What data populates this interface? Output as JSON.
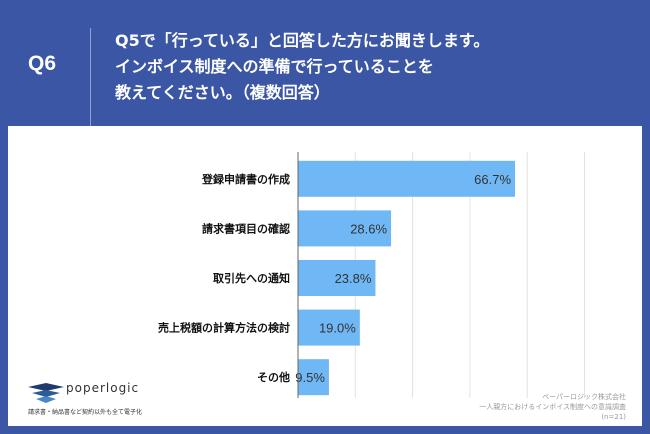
{
  "header": {
    "q_label": "Q6",
    "title_lines": [
      "Q5で「行っている」と回答した方にお聞きします。",
      "インボイス制度への準備で行っていることを",
      "教えてください。（複数回答）"
    ]
  },
  "chart_data": {
    "type": "bar",
    "orientation": "horizontal",
    "categories": [
      "登録申請書の作成",
      "請求書項目の確認",
      "取引先への通知",
      "売上税額の計算方法の検討",
      "その他"
    ],
    "values": [
      66.7,
      28.6,
      23.8,
      19.0,
      9.5
    ],
    "value_labels": [
      "66.7%",
      "28.6%",
      "23.8%",
      "19.0%",
      "9.5%"
    ],
    "xlim": [
      0,
      90
    ],
    "grid": true,
    "bar_color": "#6fb8f5"
  },
  "logo": {
    "name": "poperlogic",
    "tagline": "請求書・納品書など契約以外も全て電子化"
  },
  "source": {
    "company": "ペーパーロジック株式会社",
    "survey": "一人親方におけるインボイス制度への意識調査",
    "n": "(n=21)"
  }
}
